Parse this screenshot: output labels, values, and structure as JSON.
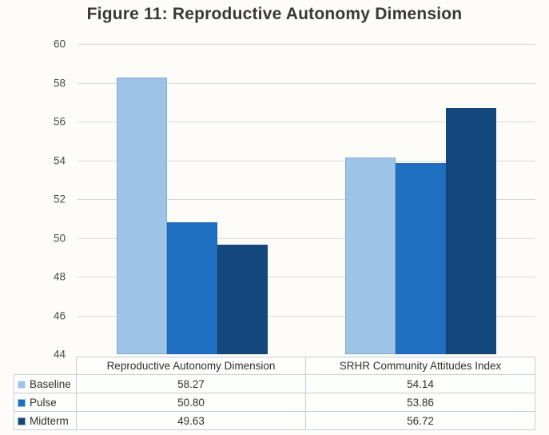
{
  "title": "Figure 11: Reproductive Autonomy Dimension",
  "colors": {
    "baseline": "#9dc3e6",
    "pulse": "#1f6fc2",
    "midterm": "#14487c",
    "gridline": "#d8d8d6"
  },
  "chart_data": {
    "type": "bar",
    "title": "Figure 11: Reproductive Autonomy Dimension",
    "categories": [
      "Reproductive Autonomy Dimension",
      "SRHR Community Attitudes Index"
    ],
    "series": [
      {
        "name": "Baseline",
        "color": "#9dc3e6",
        "values": [
          58.27,
          54.14
        ]
      },
      {
        "name": "Pulse",
        "color": "#1f6fc2",
        "values": [
          50.8,
          53.86
        ]
      },
      {
        "name": "Midterm",
        "color": "#14487c",
        "values": [
          49.63,
          56.72
        ]
      }
    ],
    "ylim": [
      44,
      60
    ],
    "ytick_step": 2,
    "ytick_labels": [
      "60",
      "58",
      "56",
      "54",
      "52",
      "50",
      "48",
      "46",
      "44"
    ],
    "grid": true,
    "legend_position": "table-left"
  },
  "table": {
    "column_headers": [
      "Reproductive Autonomy Dimension",
      "SRHR Community Attitudes Index"
    ],
    "rows": [
      {
        "label": "Baseline",
        "values": [
          "58.27",
          "54.14"
        ]
      },
      {
        "label": "Pulse",
        "values": [
          "50.80",
          "53.86"
        ]
      },
      {
        "label": "Midterm",
        "values": [
          "49.63",
          "56.72"
        ]
      }
    ]
  }
}
